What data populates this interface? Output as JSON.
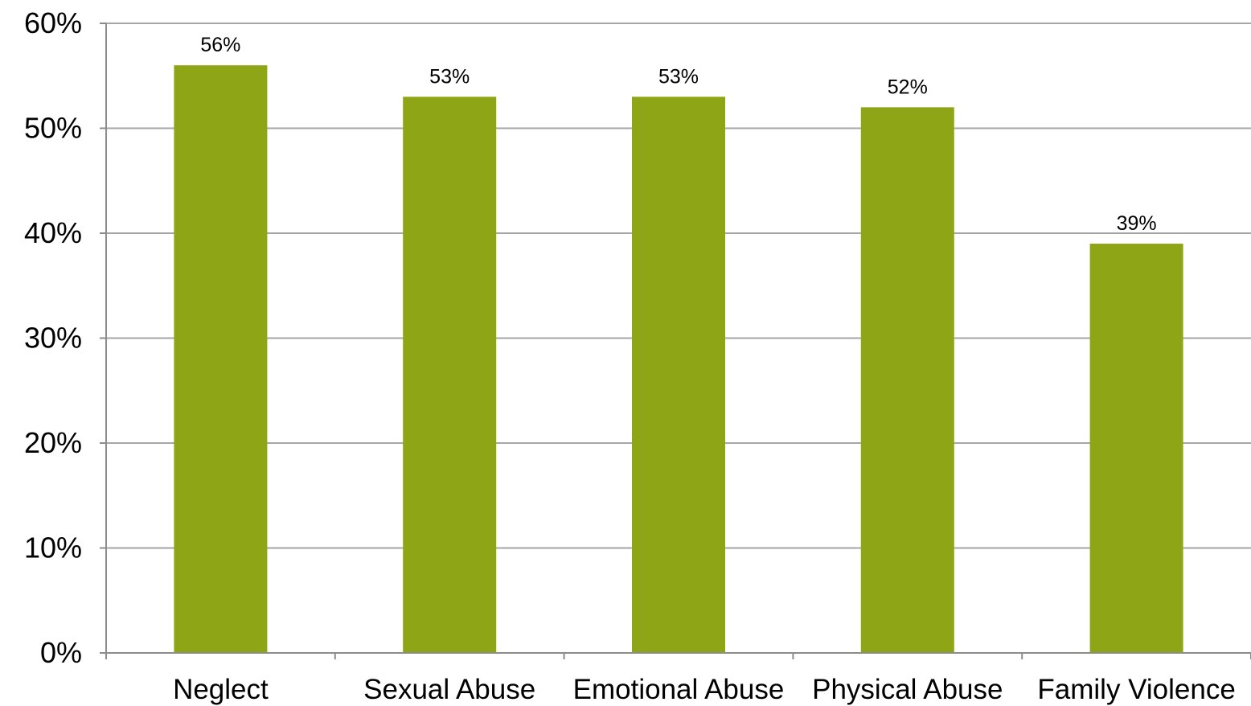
{
  "chart_data": {
    "type": "bar",
    "categories": [
      "Neglect",
      "Sexual Abuse",
      "Emotional Abuse",
      "Physical Abuse",
      "Family Violence"
    ],
    "values": [
      56,
      53,
      53,
      52,
      39
    ],
    "data_labels": [
      "56%",
      "53%",
      "53%",
      "52%",
      "39%"
    ],
    "y_ticks": [
      0,
      10,
      20,
      30,
      40,
      50,
      60
    ],
    "y_tick_labels": [
      "0%",
      "10%",
      "20%",
      "30%",
      "40%",
      "50%",
      "60%"
    ],
    "ylim": [
      0,
      60
    ],
    "y_unit": "%",
    "title": "",
    "xlabel": "",
    "ylabel": "",
    "grid": true,
    "legend": "none",
    "bar_color": "#8ea615",
    "grid_color": "#a6a6a6"
  }
}
